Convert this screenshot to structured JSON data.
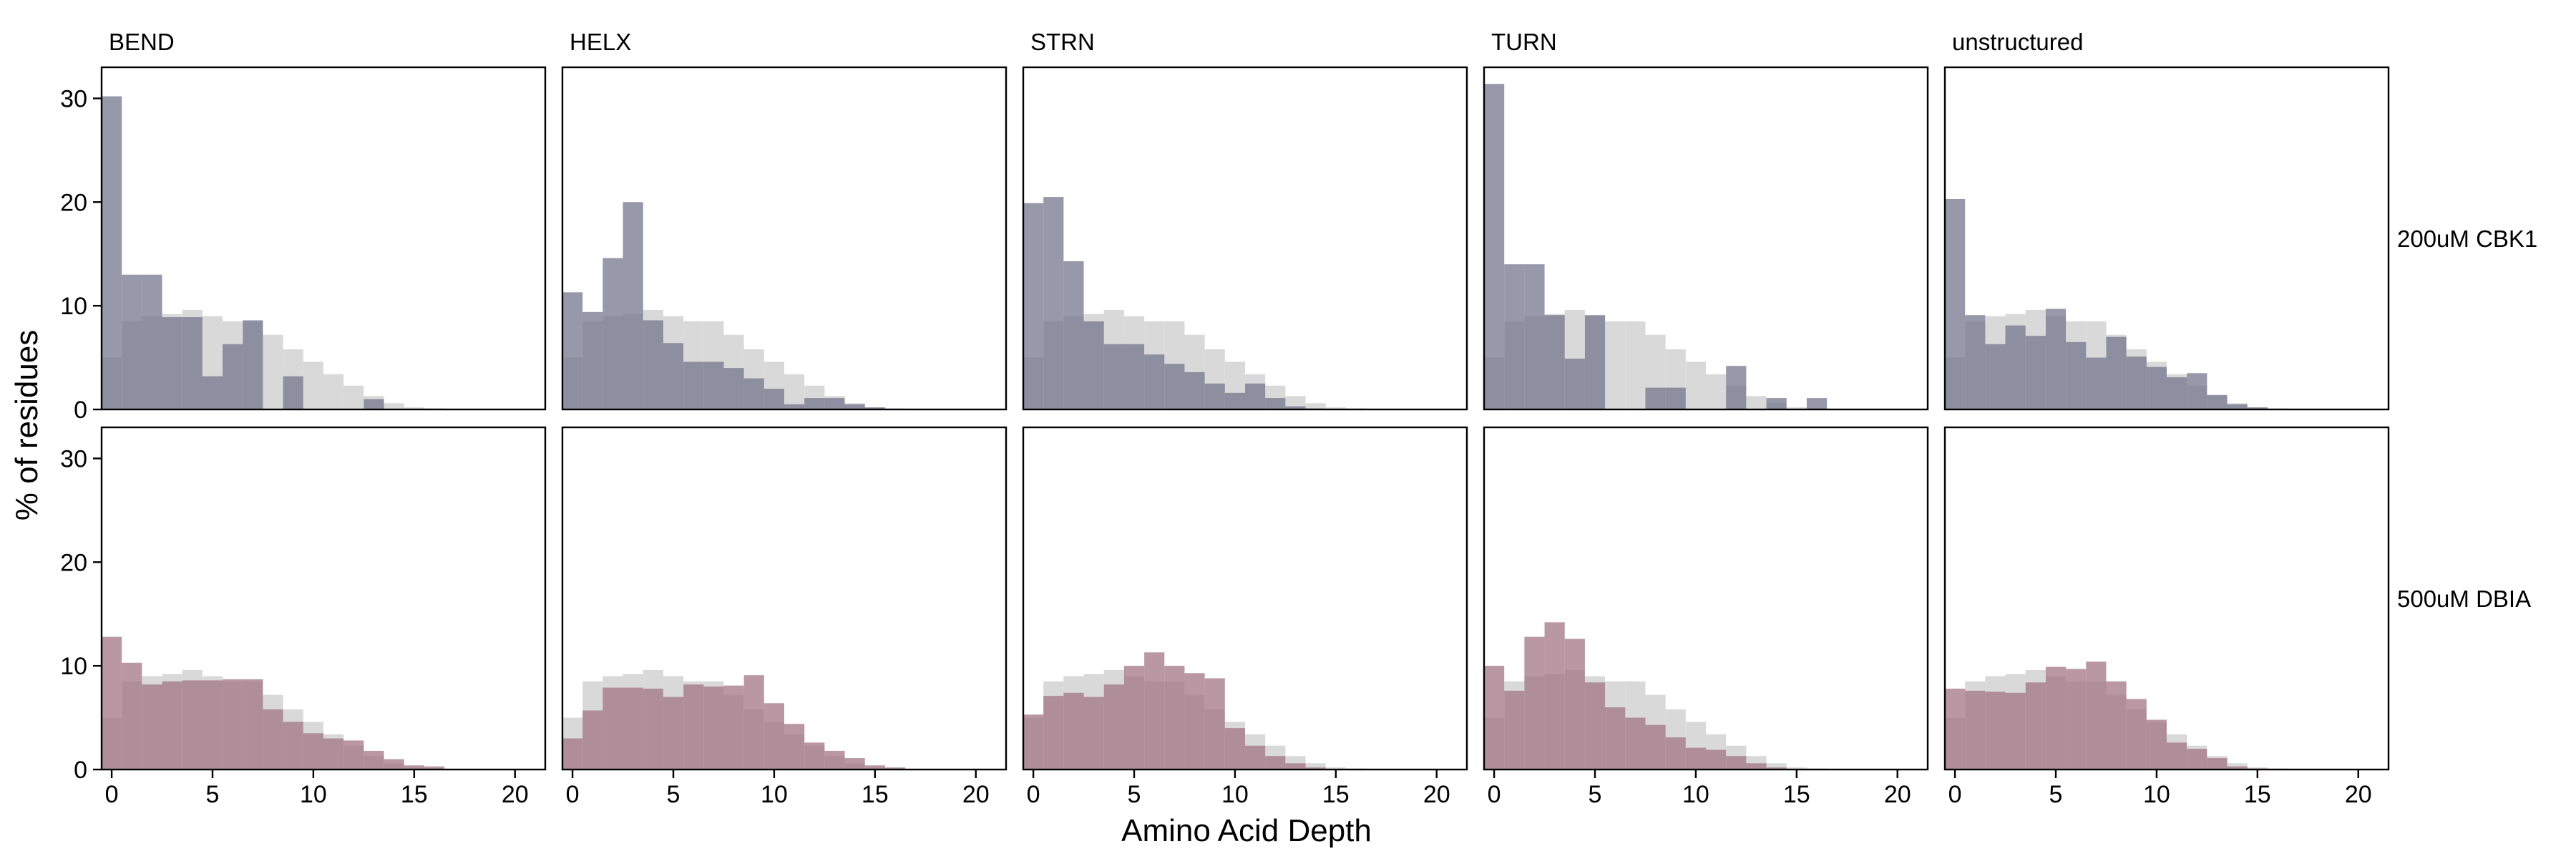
{
  "chart_data": {
    "type": "histogram-facet",
    "xlabel": "Amino Acid Depth",
    "ylabel": "% of residues",
    "x_ticks": [
      0,
      5,
      10,
      15,
      20
    ],
    "y_ticks": [
      0,
      10,
      20,
      30
    ],
    "xlim": [
      -0.5,
      21.5
    ],
    "ylim": [
      0,
      33
    ],
    "bin_width": 1,
    "bins_start": [
      0,
      1,
      2,
      3,
      4,
      5,
      6,
      7,
      8,
      9,
      10,
      11,
      12,
      13,
      14,
      15,
      16,
      17,
      18,
      19,
      20
    ],
    "columns": [
      "BEND",
      "HELX",
      "STRN",
      "TURN",
      "unstructured"
    ],
    "rows": [
      "200uM CBK1",
      "500uM DBIA"
    ],
    "colors": {
      "background_series": "#d9d9d9",
      "200uM CBK1": "#6f7088",
      "500uM DBIA": "#a0707f"
    },
    "background_values": [
      [
        5.0,
        8.5,
        9.0,
        9.2,
        9.6,
        9.0,
        8.5,
        8.5,
        7.2,
        5.8,
        4.6,
        3.4,
        2.3,
        1.3,
        0.6,
        0.2,
        0.1,
        0.0,
        0.0,
        0.0,
        0.0
      ],
      [
        5.0,
        8.5,
        9.0,
        9.2,
        9.6,
        9.0,
        8.5,
        8.5,
        7.2,
        5.8,
        4.6,
        3.4,
        2.3,
        1.3,
        0.6,
        0.2,
        0.1,
        0.0,
        0.0,
        0.0,
        0.0
      ],
      [
        5.0,
        8.5,
        9.0,
        9.2,
        9.6,
        9.0,
        8.5,
        8.5,
        7.2,
        5.8,
        4.6,
        3.4,
        2.3,
        1.3,
        0.6,
        0.2,
        0.1,
        0.0,
        0.0,
        0.0,
        0.0
      ],
      [
        5.0,
        8.5,
        9.0,
        9.2,
        9.6,
        9.0,
        8.5,
        8.5,
        7.2,
        5.8,
        4.6,
        3.4,
        2.3,
        1.3,
        0.6,
        0.2,
        0.1,
        0.0,
        0.0,
        0.0,
        0.0
      ],
      [
        5.0,
        8.5,
        9.0,
        9.2,
        9.6,
        9.0,
        8.5,
        8.5,
        7.2,
        5.8,
        4.6,
        3.4,
        2.3,
        1.3,
        0.6,
        0.2,
        0.1,
        0.0,
        0.0,
        0.0,
        0.0
      ]
    ],
    "panels": [
      {
        "row": "200uM CBK1",
        "column": "BEND",
        "values": [
          30.2,
          13.0,
          13.0,
          8.9,
          8.9,
          3.2,
          6.3,
          8.6,
          0.0,
          3.2,
          0.0,
          0.0,
          0.0,
          1.0,
          0.0,
          0.0,
          0.0,
          0.0,
          0.0,
          0.0,
          0.0
        ]
      },
      {
        "row": "200uM CBK1",
        "column": "HELX",
        "values": [
          11.3,
          9.4,
          14.6,
          20.0,
          8.6,
          6.4,
          4.6,
          4.6,
          4.0,
          3.0,
          2.0,
          0.5,
          1.1,
          1.1,
          0.5,
          0.2,
          0.0,
          0.0,
          0.0,
          0.0,
          0.0
        ]
      },
      {
        "row": "200uM CBK1",
        "column": "STRN",
        "values": [
          19.9,
          20.5,
          14.3,
          8.5,
          6.3,
          6.3,
          5.3,
          4.4,
          3.6,
          2.5,
          1.6,
          2.5,
          1.1,
          0.3,
          0.1,
          0.0,
          0.0,
          0.0,
          0.0,
          0.0,
          0.0
        ]
      },
      {
        "row": "200uM CBK1",
        "column": "TURN",
        "values": [
          31.4,
          14.0,
          14.0,
          9.1,
          4.9,
          9.1,
          0.0,
          0.0,
          2.1,
          2.1,
          0.0,
          0.0,
          4.2,
          0.0,
          1.1,
          0.0,
          1.1,
          0.0,
          0.0,
          0.0,
          0.0
        ]
      },
      {
        "row": "200uM CBK1",
        "column": "unstructured",
        "values": [
          20.3,
          9.1,
          6.3,
          8.1,
          7.1,
          9.7,
          6.5,
          5.0,
          7.0,
          5.1,
          4.1,
          3.1,
          3.5,
          1.4,
          0.5,
          0.2,
          0.0,
          0.0,
          0.0,
          0.0,
          0.0
        ]
      },
      {
        "row": "500uM DBIA",
        "column": "BEND",
        "values": [
          12.8,
          10.3,
          8.2,
          8.5,
          8.6,
          8.6,
          8.7,
          8.7,
          5.8,
          4.6,
          3.5,
          3.0,
          2.8,
          1.8,
          1.0,
          0.4,
          0.3,
          0.0,
          0.0,
          0.0,
          0.0
        ]
      },
      {
        "row": "500uM DBIA",
        "column": "HELX",
        "values": [
          3.0,
          5.7,
          7.9,
          7.9,
          7.8,
          7.0,
          8.2,
          8.0,
          8.1,
          9.1,
          6.4,
          4.4,
          2.6,
          1.8,
          1.1,
          0.4,
          0.2,
          0.0,
          0.0,
          0.0,
          0.0
        ]
      },
      {
        "row": "500uM DBIA",
        "column": "STRN",
        "values": [
          5.3,
          7.1,
          7.4,
          7.0,
          8.2,
          10.0,
          11.3,
          10.0,
          9.3,
          8.8,
          4.0,
          2.3,
          1.3,
          0.6,
          0.2,
          0.0,
          0.0,
          0.0,
          0.0,
          0.0,
          0.0
        ]
      },
      {
        "row": "500uM DBIA",
        "column": "TURN",
        "values": [
          10.0,
          7.6,
          12.8,
          14.2,
          12.6,
          8.4,
          6.0,
          5.0,
          4.3,
          3.1,
          2.1,
          1.9,
          1.3,
          0.6,
          0.2,
          0.0,
          0.0,
          0.0,
          0.0,
          0.0,
          0.0
        ]
      },
      {
        "row": "500uM DBIA",
        "column": "unstructured",
        "values": [
          7.8,
          7.6,
          7.5,
          7.4,
          8.4,
          9.9,
          9.7,
          10.4,
          8.5,
          6.8,
          4.8,
          2.6,
          2.0,
          1.1,
          0.3,
          0.1,
          0.0,
          0.0,
          0.0,
          0.0,
          0.0
        ]
      }
    ]
  }
}
